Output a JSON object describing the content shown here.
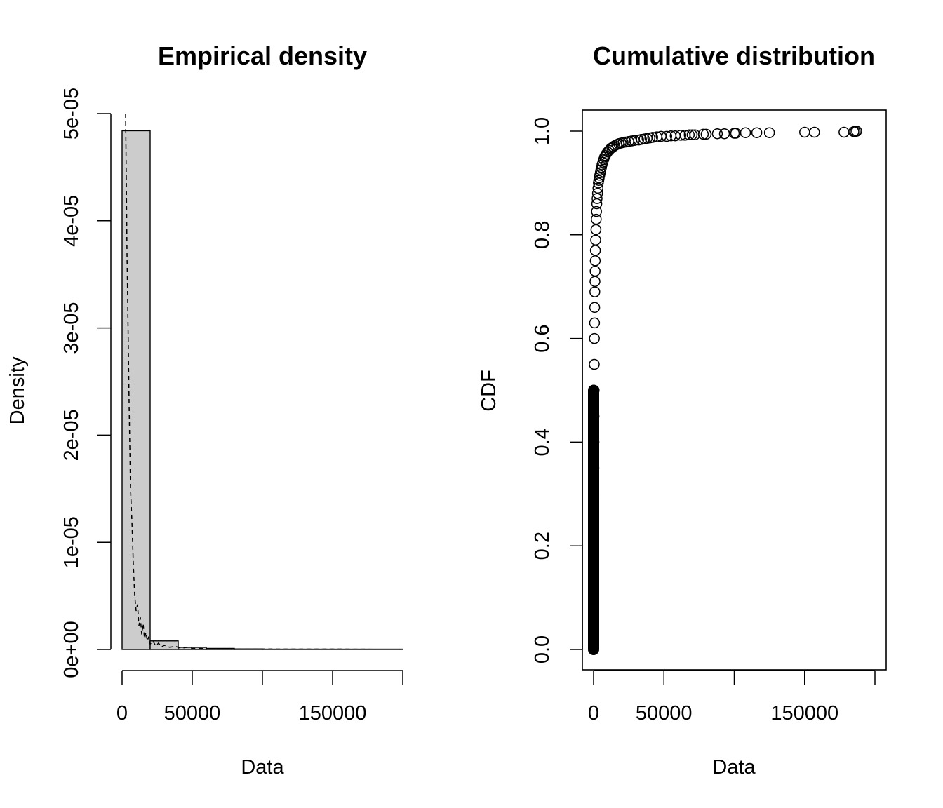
{
  "chart_data": [
    {
      "type": "histogram",
      "title": "Empirical density",
      "xlabel": "Data",
      "ylabel": "Density",
      "xlim": [
        0,
        200000
      ],
      "ylim": [
        0,
        5e-05
      ],
      "x_ticks": [
        0,
        50000,
        100000,
        150000,
        200000
      ],
      "x_tick_labels": [
        "0",
        "50000",
        "",
        "150000",
        ""
      ],
      "y_ticks": [
        0,
        1e-05,
        2e-05,
        3e-05,
        4e-05,
        5e-05
      ],
      "y_tick_labels": [
        "0e+00",
        "1e-05",
        "2e-05",
        "3e-05",
        "4e-05",
        "5e-05"
      ],
      "bins": [
        {
          "x0": 0,
          "x1": 20000,
          "density": 4.84e-05
        },
        {
          "x0": 20000,
          "x1": 40000,
          "density": 8e-07
        },
        {
          "x0": 40000,
          "x1": 60000,
          "density": 2e-07
        },
        {
          "x0": 60000,
          "x1": 80000,
          "density": 1e-07
        },
        {
          "x0": 80000,
          "x1": 100000,
          "density": 5e-08
        },
        {
          "x0": 100000,
          "x1": 200000,
          "density": 3e-08
        }
      ],
      "bar_fill": "#cccccc",
      "density_line": {
        "style": "dashed",
        "x": [
          2500,
          3000,
          3500,
          4000,
          5000,
          6000,
          7000,
          8000,
          9000,
          10000,
          11000,
          12000,
          13000,
          14000,
          15000,
          16000,
          17000,
          18000,
          19000,
          20000,
          22000,
          24000,
          26000,
          28000,
          30000,
          34000,
          38000,
          42000,
          46000,
          50000,
          60000,
          70000,
          80000,
          90000,
          100000,
          120000,
          150000,
          180000,
          200000
        ],
        "y": [
          5e-05,
          4.4e-05,
          3.7e-05,
          3.25e-05,
          2.3e-05,
          1.5e-05,
          1.2e-05,
          8e-06,
          5e-06,
          3.6e-06,
          4.2e-06,
          2.2e-06,
          3e-06,
          1.4e-06,
          2.4e-06,
          1e-06,
          1.6e-06,
          8e-07,
          1.2e-06,
          5e-07,
          8e-07,
          3e-07,
          6e-07,
          2e-07,
          4e-07,
          2e-07,
          3e-07,
          1e-07,
          2e-07,
          1e-07,
          8e-08,
          6e-08,
          5e-08,
          4e-08,
          4e-08,
          3e-08,
          3e-08,
          2e-08,
          2e-08
        ]
      }
    },
    {
      "type": "scatter",
      "title": "Cumulative distribution",
      "xlabel": "Data",
      "ylabel": "CDF",
      "xlim": [
        0,
        200000
      ],
      "ylim": [
        0,
        1
      ],
      "x_ticks": [
        0,
        50000,
        100000,
        150000,
        200000
      ],
      "x_tick_labels": [
        "0",
        "50000",
        "",
        "150000",
        ""
      ],
      "y_ticks": [
        0,
        0.2,
        0.4,
        0.6,
        0.8,
        1.0
      ],
      "y_tick_labels": [
        "0.0",
        "0.2",
        "0.4",
        "0.6",
        "0.8",
        "1.0"
      ],
      "marker": "open-circle",
      "points_x": [
        0,
        0,
        0,
        0,
        0,
        100,
        150,
        200,
        250,
        300,
        400,
        500,
        600,
        700,
        800,
        900,
        1000,
        1100,
        1200,
        1300,
        1500,
        1700,
        1900,
        2100,
        2300,
        2500,
        2800,
        3100,
        3400,
        3700,
        4000,
        4400,
        4800,
        5200,
        5600,
        6000,
        6600,
        7200,
        7800,
        8400,
        9000,
        10000,
        11000,
        12000,
        13000,
        14000,
        15000,
        16500,
        18000,
        19500,
        21000,
        23000,
        25000,
        27000,
        29000,
        32000,
        34000,
        36000,
        38000,
        40000,
        42000,
        45000,
        48000,
        52000,
        55000,
        58000,
        62000,
        65000,
        68000,
        70000,
        72000,
        78000,
        80000,
        88000,
        93000,
        100000,
        101000,
        108000,
        116000,
        125000,
        150000,
        157000,
        178000,
        185000,
        186000,
        187000
      ],
      "points_y": [
        0.0,
        0.05,
        0.1,
        0.15,
        0.2,
        0.25,
        0.3,
        0.35,
        0.4,
        0.45,
        0.5,
        0.55,
        0.6,
        0.63,
        0.66,
        0.69,
        0.71,
        0.73,
        0.75,
        0.77,
        0.79,
        0.81,
        0.83,
        0.845,
        0.86,
        0.87,
        0.88,
        0.89,
        0.9,
        0.905,
        0.91,
        0.915,
        0.92,
        0.925,
        0.93,
        0.935,
        0.94,
        0.945,
        0.95,
        0.953,
        0.956,
        0.96,
        0.963,
        0.966,
        0.968,
        0.97,
        0.972,
        0.974,
        0.976,
        0.977,
        0.978,
        0.979,
        0.98,
        0.981,
        0.982,
        0.983,
        0.984,
        0.985,
        0.986,
        0.987,
        0.988,
        0.989,
        0.99,
        0.99,
        0.991,
        0.991,
        0.992,
        0.992,
        0.993,
        0.993,
        0.993,
        0.994,
        0.994,
        0.995,
        0.995,
        0.996,
        0.996,
        0.997,
        0.997,
        0.997,
        0.998,
        0.998,
        0.998,
        0.999,
        0.999,
        1.0
      ]
    }
  ]
}
